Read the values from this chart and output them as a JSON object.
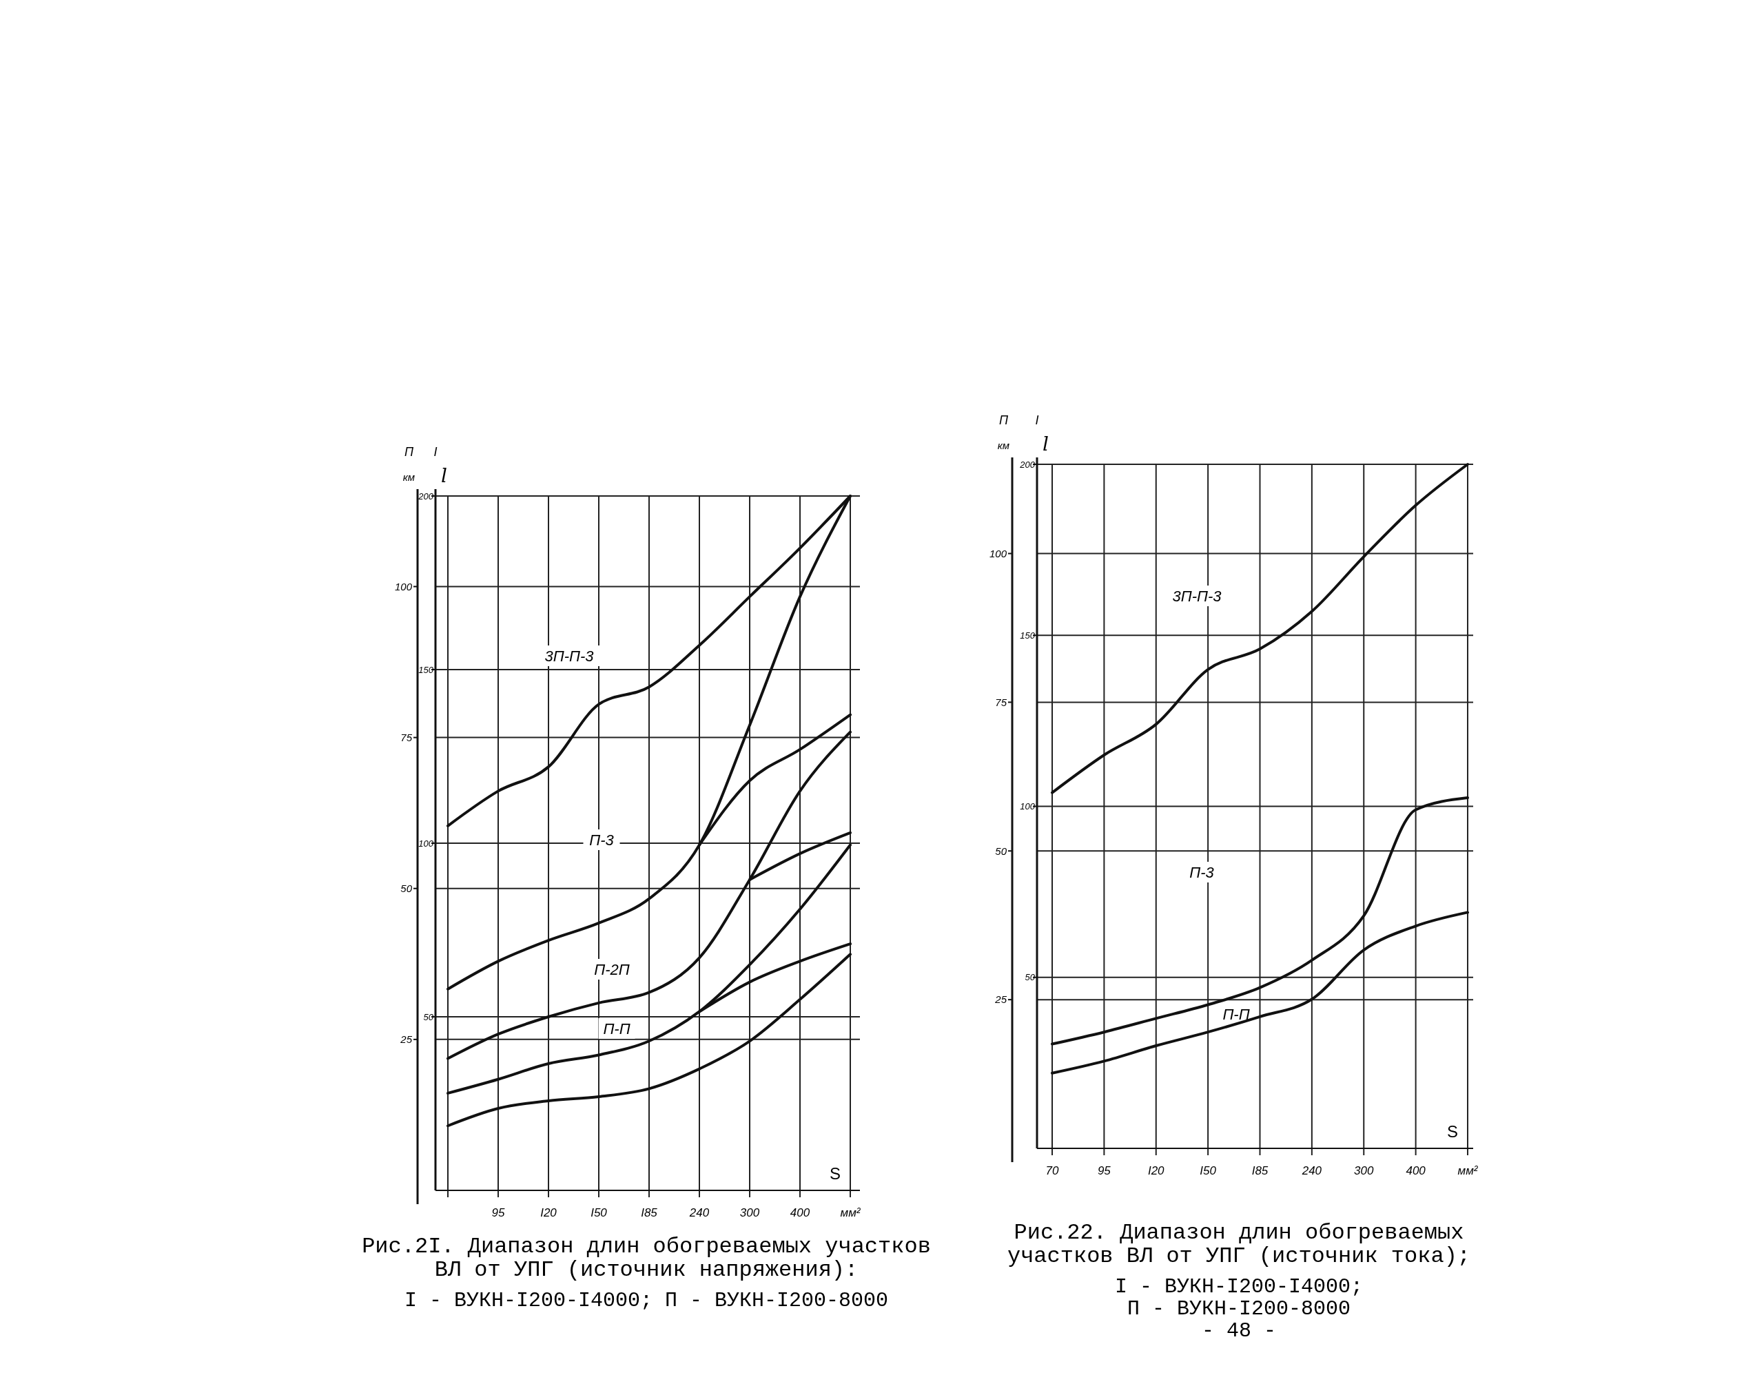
{
  "chart_data": [
    {
      "type": "line",
      "title": "Рис.2I. Диапазон длин обогреваемых участков ВЛ от УПГ (источник напряжения):",
      "subtitle": "I - ВУКН-I200-I4000; П - ВУКН-I200-8000",
      "xlabel": "S",
      "ylabel": "I",
      "y2label": "П",
      "categories": [
        null,
        "95",
        "I20",
        "I50",
        "I85",
        "240",
        "300",
        "400",
        "мм²"
      ],
      "ylim": [
        0,
        200
      ],
      "yticks": [
        50,
        100,
        150,
        200
      ],
      "y2lim": [
        0,
        115
      ],
      "y2ticks": [
        25,
        50,
        75,
        100
      ],
      "grid": true,
      "series": [
        {
          "color": "#111111",
          "values": [
            105,
            115,
            122,
            140,
            145,
            157,
            171,
            185,
            200
          ]
        },
        {
          "color": "#111111",
          "values": [
            58,
            66,
            72,
            77,
            84,
            99.5,
            134,
            171,
            200
          ]
        },
        {
          "color": "#111111",
          "values": [
            null,
            null,
            null,
            null,
            null,
            99.5,
            118,
            127,
            137
          ]
        },
        {
          "color": "#111111",
          "values": [
            38,
            45,
            50,
            54,
            57,
            67,
            89.5,
            115,
            132
          ]
        },
        {
          "color": "#111111",
          "values": [
            null,
            null,
            null,
            null,
            null,
            null,
            89.5,
            97,
            103
          ]
        },
        {
          "color": "#111111",
          "values": [
            28,
            32,
            36.5,
            39,
            43,
            51.5,
            65,
            81,
            99.5
          ]
        },
        {
          "color": "#111111",
          "values": [
            null,
            null,
            null,
            null,
            null,
            51.5,
            60,
            66,
            71
          ]
        },
        {
          "color": "#111111",
          "values": [
            18.6,
            23.6,
            25.8,
            27,
            29.3,
            35,
            43,
            55,
            68
          ]
        }
      ],
      "annotations": [
        "l",
        "км",
        "3П-П-3",
        "П-3",
        "П-2П",
        "П-П"
      ]
    },
    {
      "type": "line",
      "title": "Рис.22. Диапазон длин обогреваемых участков ВЛ от УПГ (источник тока);",
      "subtitle": "I - ВУКН-I200-I4000;",
      "xlabel": "S",
      "ylabel": "I",
      "y2label": "П",
      "categories": [
        "70",
        "95",
        "I20",
        "I50",
        "I85",
        "240",
        "300",
        "400",
        "мм²"
      ],
      "ylim": [
        0,
        200
      ],
      "yticks": [
        50,
        100,
        150,
        200
      ],
      "y2lim": [
        0,
        115
      ],
      "y2ticks": [
        25,
        50,
        75,
        100
      ],
      "grid": true,
      "series": [
        {
          "color": "#111111",
          "values": [
            104,
            115,
            124,
            140,
            146,
            157,
            173,
            188,
            200
          ]
        },
        {
          "color": "#111111",
          "values": [
            30.5,
            34,
            38,
            42,
            47,
            55,
            68,
            99,
            102.5
          ]
        },
        {
          "color": "#111111",
          "values": [
            22,
            25.5,
            30,
            34,
            38.5,
            43.6,
            58,
            65,
            69
          ]
        }
      ],
      "annotations": [
        "l",
        "км",
        "3П-П-3",
        "П-3",
        "П-П",
        "П - ВУКН-I200-8000",
        "- 48 -"
      ]
    }
  ]
}
